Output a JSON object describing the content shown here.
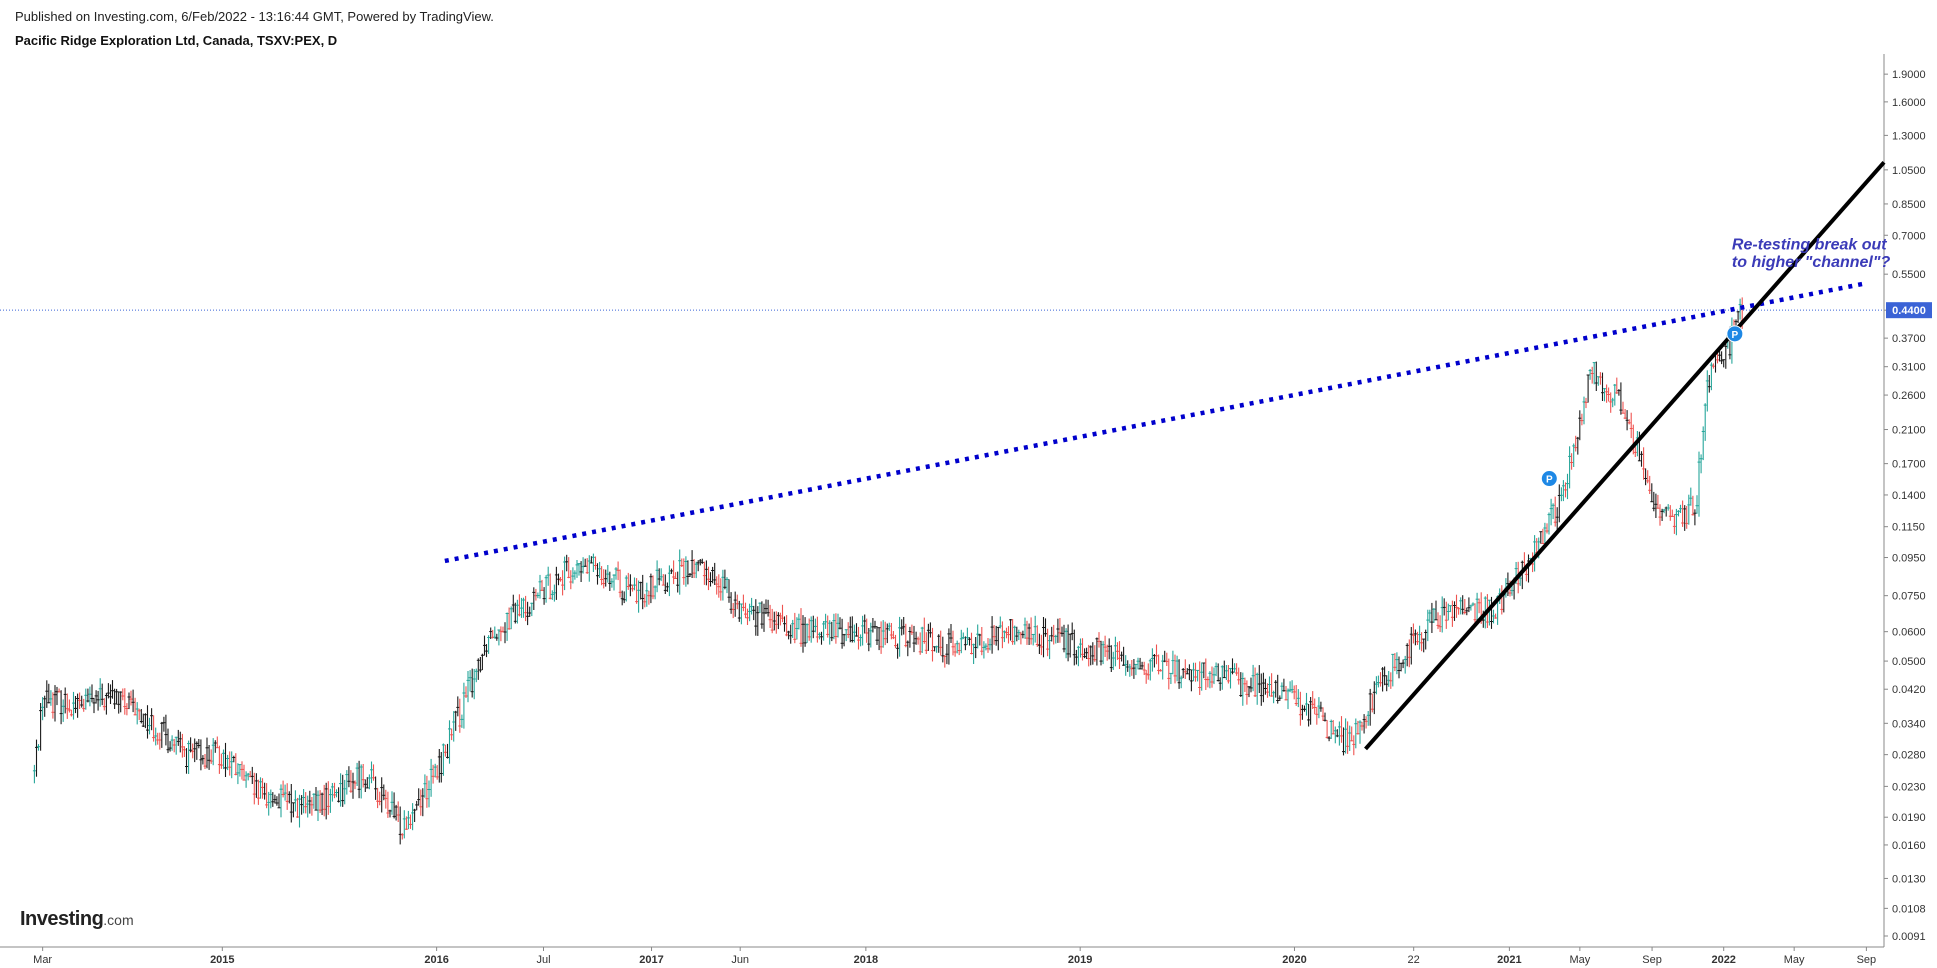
{
  "header": {
    "published": "Published on Investing.com, 6/Feb/2022 - 13:16:44 GMT, Powered by TradingView.",
    "symbol_title": "Pacific Ridge Exploration Ltd, Canada, TSXV:PEX, D"
  },
  "logo": {
    "brand": "Investing",
    "suffix": ".com"
  },
  "colors": {
    "up": "#26a69a",
    "down": "#ef5350",
    "trend": "#0000cc",
    "support": "#000000",
    "price_line": "#3b63d6",
    "annotation": "#3b3bb8"
  },
  "chart_data": {
    "type": "candlestick",
    "title": "Pacific Ridge Exploration Ltd, Canada, TSXV:PEX, D",
    "y_scale": "log",
    "ylim": [
      0.0085,
      2.1
    ],
    "xlim": [
      "2014-01-01",
      "2022-10-01"
    ],
    "y_ticks": [
      1.9,
      1.6,
      1.3,
      1.05,
      0.85,
      0.7,
      0.55,
      0.44,
      0.37,
      0.31,
      0.26,
      0.21,
      0.17,
      0.14,
      0.115,
      0.095,
      0.075,
      0.06,
      0.05,
      0.042,
      0.034,
      0.028,
      0.023,
      0.019,
      0.016,
      0.013,
      0.0108,
      0.0091
    ],
    "y_tick_labels": [
      "1.9000",
      "1.6000",
      "1.3000",
      "1.0500",
      "0.8500",
      "0.7000",
      "0.5500",
      "0.4400",
      "0.3700",
      "0.3100",
      "0.2600",
      "0.2100",
      "0.1700",
      "0.1400",
      "0.1150",
      "0.0950",
      "0.0750",
      "0.0600",
      "0.0500",
      "0.0420",
      "0.0340",
      "0.0280",
      "0.0230",
      "0.0190",
      "0.0160",
      "0.0130",
      "0.0108",
      "0.0091"
    ],
    "x_ticks": [
      {
        "date": "2014-03-01",
        "label": "Mar",
        "bold": false
      },
      {
        "date": "2015-01-01",
        "label": "2015",
        "bold": true
      },
      {
        "date": "2016-01-01",
        "label": "2016",
        "bold": true
      },
      {
        "date": "2016-07-01",
        "label": "Jul",
        "bold": false
      },
      {
        "date": "2017-01-01",
        "label": "2017",
        "bold": true
      },
      {
        "date": "2017-06-01",
        "label": "Jun",
        "bold": false
      },
      {
        "date": "2018-01-01",
        "label": "2018",
        "bold": true
      },
      {
        "date": "2019-01-01",
        "label": "2019",
        "bold": true
      },
      {
        "date": "2020-01-01",
        "label": "2020",
        "bold": true
      },
      {
        "date": "2020-07-22",
        "label": "22",
        "bold": false
      },
      {
        "date": "2021-01-01",
        "label": "2021",
        "bold": true
      },
      {
        "date": "2021-05-01",
        "label": "May",
        "bold": false
      },
      {
        "date": "2021-09-01",
        "label": "Sep",
        "bold": false
      },
      {
        "date": "2022-01-01",
        "label": "2022",
        "bold": true
      },
      {
        "date": "2022-05-01",
        "label": "May",
        "bold": false
      },
      {
        "date": "2022-09-01",
        "label": "Sep",
        "bold": false
      }
    ],
    "current_price": 0.44,
    "current_price_label": "0.4400",
    "price_path": [
      [
        "2014-02-15",
        0.025
      ],
      [
        "2014-03-01",
        0.04
      ],
      [
        "2014-05-01",
        0.038
      ],
      [
        "2014-07-01",
        0.04
      ],
      [
        "2014-09-01",
        0.034
      ],
      [
        "2014-11-01",
        0.028
      ],
      [
        "2015-01-01",
        0.028
      ],
      [
        "2015-03-01",
        0.022
      ],
      [
        "2015-06-01",
        0.02
      ],
      [
        "2015-09-01",
        0.025
      ],
      [
        "2015-11-01",
        0.018
      ],
      [
        "2016-01-01",
        0.025
      ],
      [
        "2016-02-15",
        0.038
      ],
      [
        "2016-04-01",
        0.06
      ],
      [
        "2016-06-01",
        0.07
      ],
      [
        "2016-08-01",
        0.085
      ],
      [
        "2016-10-01",
        0.09
      ],
      [
        "2016-12-01",
        0.075
      ],
      [
        "2017-02-01",
        0.085
      ],
      [
        "2017-04-01",
        0.09
      ],
      [
        "2017-06-01",
        0.07
      ],
      [
        "2017-09-01",
        0.06
      ],
      [
        "2018-01-01",
        0.06
      ],
      [
        "2018-06-01",
        0.055
      ],
      [
        "2018-09-01",
        0.06
      ],
      [
        "2019-01-01",
        0.055
      ],
      [
        "2019-05-01",
        0.048
      ],
      [
        "2019-09-01",
        0.045
      ],
      [
        "2020-01-01",
        0.04
      ],
      [
        "2020-04-01",
        0.03
      ],
      [
        "2020-06-01",
        0.045
      ],
      [
        "2020-08-01",
        0.06
      ],
      [
        "2020-10-01",
        0.07
      ],
      [
        "2020-12-01",
        0.068
      ],
      [
        "2021-01-15",
        0.085
      ],
      [
        "2021-03-01",
        0.11
      ],
      [
        "2021-04-01",
        0.14
      ],
      [
        "2021-05-01",
        0.21
      ],
      [
        "2021-05-20",
        0.3
      ],
      [
        "2021-06-15",
        0.28
      ],
      [
        "2021-07-15",
        0.24
      ],
      [
        "2021-08-15",
        0.17
      ],
      [
        "2021-09-15",
        0.12
      ],
      [
        "2021-10-15",
        0.12
      ],
      [
        "2021-11-15",
        0.13
      ],
      [
        "2021-12-01",
        0.25
      ],
      [
        "2021-12-15",
        0.33
      ],
      [
        "2022-01-10",
        0.35
      ],
      [
        "2022-01-25",
        0.42
      ],
      [
        "2022-02-04",
        0.44
      ]
    ],
    "markers": [
      {
        "date": "2021-03-10",
        "price": 0.155,
        "label": "P"
      },
      {
        "date": "2022-01-20",
        "price": 0.38,
        "label": "P"
      }
    ],
    "trendlines": [
      {
        "name": "resistance",
        "style": "dotted",
        "from": [
          "2016-01-15",
          0.093
        ],
        "to": [
          "2022-09-01",
          0.52
        ]
      },
      {
        "name": "support",
        "style": "solid",
        "from": [
          "2020-05-01",
          0.029
        ],
        "to": [
          "2022-10-01",
          1.1
        ]
      }
    ],
    "annotations": [
      {
        "text": "Re-testing break out",
        "date": "2022-01-15",
        "price": 0.64
      },
      {
        "text": "to higher \"channel\"?",
        "date": "2022-01-15",
        "price": 0.575
      }
    ]
  }
}
